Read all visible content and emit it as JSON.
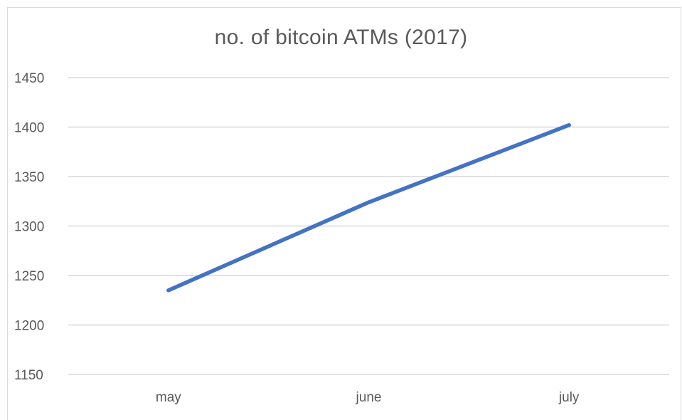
{
  "chart_data": {
    "type": "line",
    "title": "no. of bitcoin ATMs (2017)",
    "xlabel": "",
    "ylabel": "",
    "categories": [
      "may",
      "june",
      "july"
    ],
    "series": [
      {
        "values": [
          1235,
          1324,
          1402
        ],
        "color": "#4472C4"
      }
    ],
    "ylim": [
      1150,
      1450
    ],
    "yticks": [
      1150,
      1200,
      1250,
      1300,
      1350,
      1400,
      1450
    ],
    "grid": true,
    "legend": "none"
  }
}
